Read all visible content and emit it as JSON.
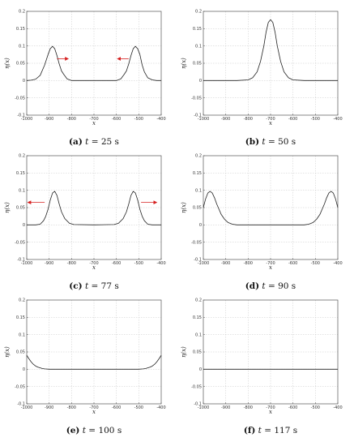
{
  "chart_data": [
    {
      "type": "line",
      "caption": {
        "letter": "(a)",
        "var": "t",
        "rest": " = 25 s"
      },
      "xlabel": "x",
      "ylabel": "η(x)",
      "xlim": [
        -1000,
        -400
      ],
      "ylim": [
        -0.1,
        0.2
      ],
      "xticks": [
        "-1000",
        "-900",
        "-800",
        "-700",
        "-600",
        "-500",
        "-400"
      ],
      "yticks": [
        "-0.1",
        "-0.05",
        "0",
        "0.05",
        "0.1",
        "0.15",
        "0.2"
      ],
      "grid": true,
      "series": [
        {
          "x": [
            -1000,
            -980,
            -960,
            -940,
            -920,
            -905,
            -895,
            -885,
            -875,
            -865,
            -855,
            -845,
            -835,
            -820,
            -800,
            -700,
            -600,
            -580,
            -565,
            -555,
            -545,
            -535,
            -525,
            -515,
            -505,
            -495,
            -485,
            -475,
            -460,
            -440,
            -420,
            -400
          ],
          "y": [
            0,
            0.001,
            0.004,
            0.015,
            0.045,
            0.075,
            0.092,
            0.099,
            0.092,
            0.072,
            0.048,
            0.028,
            0.018,
            0.005,
            0,
            0,
            0,
            0.005,
            0.018,
            0.028,
            0.048,
            0.072,
            0.092,
            0.099,
            0.092,
            0.075,
            0.045,
            0.025,
            0.008,
            0.002,
            0,
            0
          ]
        }
      ],
      "arrows": [
        {
          "x1": -865,
          "x2": -815,
          "y": 0.063
        },
        {
          "x1": -545,
          "x2": -595,
          "y": 0.063
        }
      ]
    },
    {
      "type": "line",
      "caption": {
        "letter": "(b)",
        "var": "t",
        "rest": " = 50 s"
      },
      "xlabel": "x",
      "ylabel": "η(x)",
      "xlim": [
        -1000,
        -400
      ],
      "ylim": [
        -0.1,
        0.2
      ],
      "xticks": [
        "-1000",
        "-900",
        "-800",
        "-700",
        "-600",
        "-500",
        "-400"
      ],
      "yticks": [
        "-0.1",
        "-0.05",
        "0",
        "0.05",
        "0.1",
        "0.15",
        "0.2"
      ],
      "grid": true,
      "series": [
        {
          "x": [
            -1000,
            -850,
            -800,
            -780,
            -760,
            -745,
            -730,
            -720,
            -710,
            -700,
            -690,
            -680,
            -670,
            -655,
            -640,
            -620,
            -600,
            -550,
            -400
          ],
          "y": [
            0,
            0,
            0.002,
            0.008,
            0.025,
            0.055,
            0.1,
            0.14,
            0.168,
            0.176,
            0.168,
            0.14,
            0.1,
            0.055,
            0.025,
            0.008,
            0.002,
            0,
            0
          ]
        }
      ],
      "arrows": []
    },
    {
      "type": "line",
      "caption": {
        "letter": "(c)",
        "var": "t",
        "rest": " = 77 s"
      },
      "xlabel": "x",
      "ylabel": "η(x)",
      "xlim": [
        -1000,
        -400
      ],
      "ylim": [
        -0.1,
        0.2
      ],
      "xticks": [
        "-1000",
        "-900",
        "-800",
        "-700",
        "-600",
        "-500",
        "-400"
      ],
      "yticks": [
        "-0.1",
        "-0.05",
        "0",
        "0.05",
        "0.1",
        "0.15",
        "0.2"
      ],
      "grid": true,
      "series": [
        {
          "x": [
            -1000,
            -960,
            -940,
            -925,
            -915,
            -905,
            -895,
            -885,
            -875,
            -865,
            -855,
            -845,
            -830,
            -810,
            -790,
            -700,
            -610,
            -590,
            -570,
            -555,
            -545,
            -535,
            -525,
            -515,
            -505,
            -495,
            -485,
            -475,
            -460,
            -440,
            -400
          ],
          "y": [
            0,
            0,
            0.002,
            0.012,
            0.025,
            0.045,
            0.072,
            0.092,
            0.097,
            0.085,
            0.06,
            0.038,
            0.018,
            0.005,
            0.001,
            0,
            0.001,
            0.005,
            0.018,
            0.038,
            0.06,
            0.085,
            0.097,
            0.092,
            0.072,
            0.045,
            0.025,
            0.012,
            0.002,
            0,
            0
          ]
        }
      ],
      "arrows": [
        {
          "x1": -920,
          "x2": -995,
          "y": 0.065
        },
        {
          "x1": -490,
          "x2": -420,
          "y": 0.065
        }
      ]
    },
    {
      "type": "line",
      "caption": {
        "letter": "(d)",
        "var": "t",
        "rest": " = 90 s"
      },
      "xlabel": "x",
      "ylabel": "η(x)",
      "xlim": [
        -1000,
        -400
      ],
      "ylim": [
        -0.1,
        0.2
      ],
      "xticks": [
        "-1000",
        "-900",
        "-800",
        "-700",
        "-600",
        "-500",
        "-400"
      ],
      "yticks": [
        "-0.1",
        "-0.05",
        "0",
        "0.05",
        "0.1",
        "0.15",
        "0.2"
      ],
      "grid": true,
      "series": [
        {
          "x": [
            -1000,
            -990,
            -980,
            -970,
            -960,
            -950,
            -940,
            -930,
            -920,
            -905,
            -890,
            -870,
            -850,
            -800,
            -700,
            -600,
            -550,
            -530,
            -510,
            -495,
            -480,
            -470,
            -460,
            -450,
            -440,
            -430,
            -420,
            -410,
            -400
          ],
          "y": [
            0.05,
            0.075,
            0.092,
            0.097,
            0.092,
            0.078,
            0.06,
            0.045,
            0.03,
            0.016,
            0.007,
            0.002,
            0,
            0,
            0,
            0,
            0,
            0.002,
            0.007,
            0.016,
            0.03,
            0.045,
            0.06,
            0.078,
            0.092,
            0.097,
            0.092,
            0.075,
            0.05
          ]
        }
      ],
      "arrows": []
    },
    {
      "type": "line",
      "caption": {
        "letter": "(e)",
        "var": "t",
        "rest": " = 100 s"
      },
      "xlabel": "x",
      "ylabel": "η(x)",
      "xlim": [
        -1000,
        -400
      ],
      "ylim": [
        -0.1,
        0.2
      ],
      "xticks": [
        "-1000",
        "-900",
        "-800",
        "-700",
        "-600",
        "-500",
        "-400"
      ],
      "yticks": [
        "-0.1",
        "-0.05",
        "0",
        "0.05",
        "0.1",
        "0.15",
        "0.2"
      ],
      "grid": true,
      "series": [
        {
          "x": [
            -1000,
            -990,
            -980,
            -970,
            -960,
            -950,
            -940,
            -930,
            -920,
            -900,
            -880,
            -700,
            -520,
            -500,
            -480,
            -470,
            -460,
            -450,
            -440,
            -430,
            -420,
            -410,
            -400
          ],
          "y": [
            0.04,
            0.03,
            0.021,
            0.014,
            0.009,
            0.006,
            0.004,
            0.002,
            0.001,
            0,
            0,
            0,
            0,
            0,
            0.001,
            0.002,
            0.004,
            0.006,
            0.009,
            0.014,
            0.021,
            0.03,
            0.04
          ]
        }
      ],
      "arrows": []
    },
    {
      "type": "line",
      "caption": {
        "letter": "(f)",
        "var": "t",
        "rest": " = 117 s"
      },
      "xlabel": "x",
      "ylabel": "η(x)",
      "xlim": [
        -1000,
        -400
      ],
      "ylim": [
        -0.1,
        0.2
      ],
      "xticks": [
        "-1000",
        "-900",
        "-800",
        "-700",
        "-600",
        "-500",
        "-400"
      ],
      "yticks": [
        "-0.1",
        "-0.05",
        "0",
        "0.05",
        "0.1",
        "0.15",
        "0.2"
      ],
      "grid": true,
      "series": [
        {
          "x": [
            -1000,
            -400
          ],
          "y": [
            0,
            0
          ]
        }
      ],
      "arrows": []
    }
  ],
  "colors": {
    "line": "#222222",
    "grid": "#c8c8c8",
    "arrow": "#d62020",
    "axis": "#555555"
  }
}
